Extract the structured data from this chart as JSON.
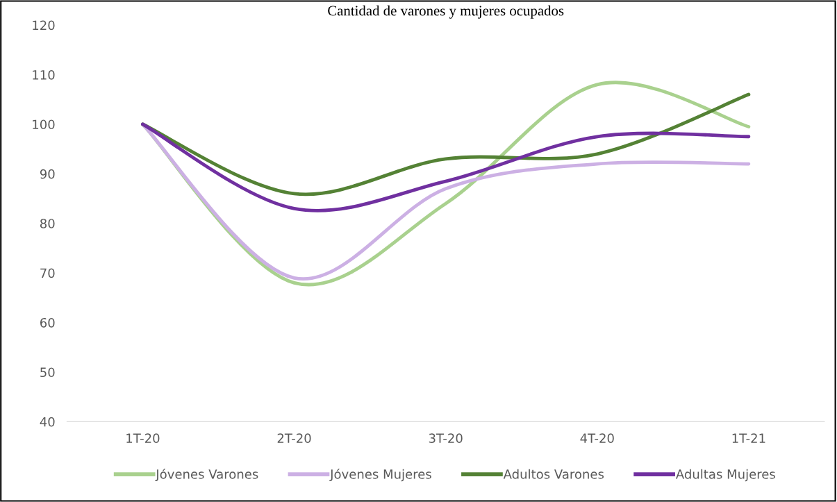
{
  "chart_data": {
    "type": "line",
    "title": "Cantidad de varones y mujeres ocupados",
    "categories": [
      "1T-20",
      "2T-20",
      "3T-20",
      "4T-20",
      "1T-21"
    ],
    "series": [
      {
        "name": "Jóvenes Varones",
        "color": "#a9d18e",
        "values": [
          100,
          68,
          84,
          108,
          99.5
        ]
      },
      {
        "name": "Jóvenes Mujeres",
        "color": "#ccb0e4",
        "values": [
          100,
          69,
          87,
          92,
          92
        ]
      },
      {
        "name": "Adultos Varones",
        "color": "#548235",
        "values": [
          100,
          86,
          93,
          94,
          106
        ]
      },
      {
        "name": "Adultas Mujeres",
        "color": "#7030a0",
        "values": [
          100,
          83,
          88.5,
          97.5,
          97.5
        ]
      }
    ],
    "ylim": [
      40,
      120
    ],
    "yticks": [
      40,
      50,
      60,
      70,
      80,
      90,
      100,
      110,
      120
    ],
    "grid": false,
    "legend": "bottom",
    "marker": "none",
    "line_style": "solid"
  }
}
